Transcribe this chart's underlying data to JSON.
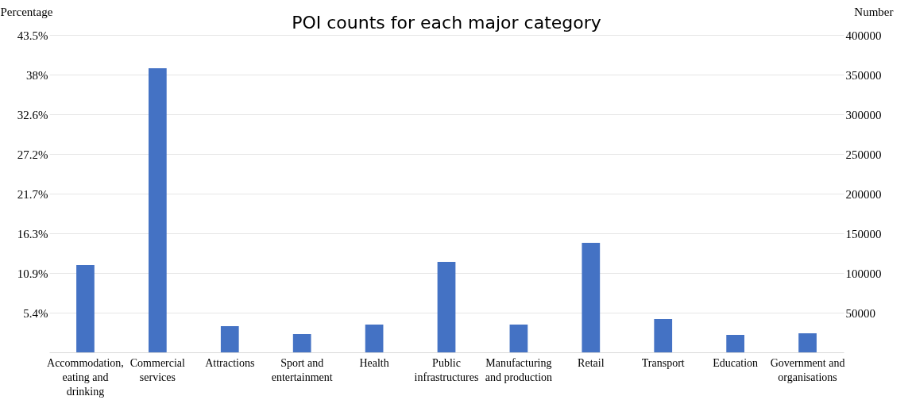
{
  "chart_data": {
    "type": "bar",
    "title": "POI counts for each major category",
    "ylabel": "Percentage",
    "y2label": "Number",
    "categories": [
      "Accommodation, eating and drinking",
      "Commercial services",
      "Attractions",
      "Sport and entertainment",
      "Health",
      "Public infrastructures",
      "Manufacturing and production",
      "Retail",
      "Transport",
      "Education",
      "Government and organisations"
    ],
    "series": [
      {
        "color": "#4472c4",
        "axis": "y2",
        "values": [
          110000,
          358000,
          33000,
          23000,
          35000,
          114000,
          35000,
          138000,
          42000,
          22000,
          24000
        ]
      }
    ],
    "ylim": [
      0,
      43.5
    ],
    "yticks": [
      {
        "value": 5.4375,
        "label": "5.4%"
      },
      {
        "value": 10.875,
        "label": "10.9%"
      },
      {
        "value": 16.3125,
        "label": "16.3%"
      },
      {
        "value": 21.75,
        "label": "21.7%"
      },
      {
        "value": 27.1875,
        "label": "27.2%"
      },
      {
        "value": 32.625,
        "label": "32.6%"
      },
      {
        "value": 38.0625,
        "label": "38%"
      },
      {
        "value": 43.5,
        "label": "43.5%"
      }
    ],
    "y2lim": [
      0,
      400000
    ],
    "y2ticks": [
      50000,
      100000,
      150000,
      200000,
      250000,
      300000,
      350000,
      400000
    ],
    "grid": true
  }
}
